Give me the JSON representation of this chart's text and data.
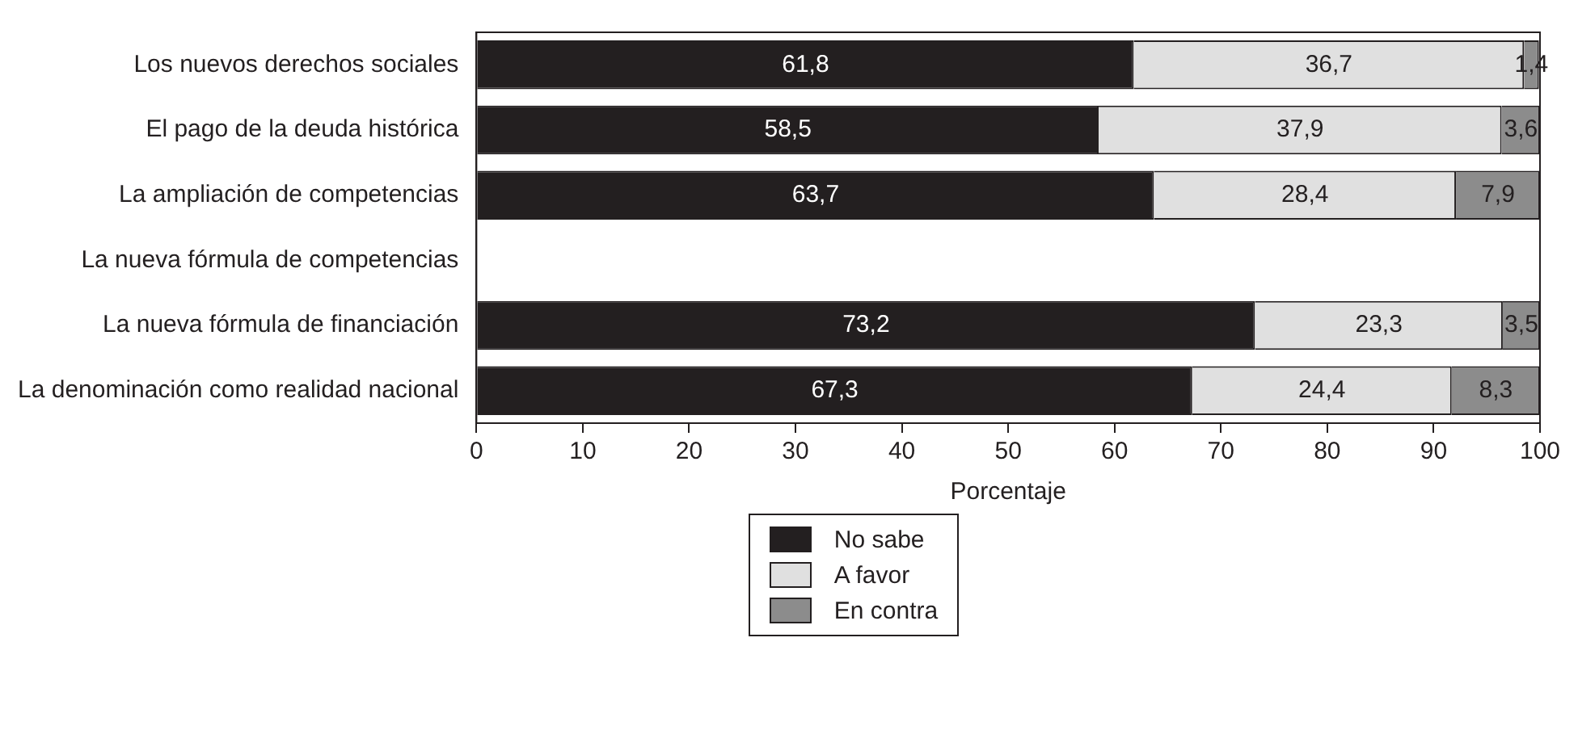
{
  "chart_data": {
    "type": "bar",
    "orientation": "horizontal",
    "stacked": true,
    "categories": [
      "Los nuevos derechos sociales",
      "El pago de la deuda histórica",
      "La ampliación de competencias",
      "La nueva fórmula de competencias",
      "La nueva fórmula de financiación",
      "La denominación como realidad nacional"
    ],
    "series": [
      {
        "name": "No sabe",
        "color": "#231f20",
        "values": [
          61.8,
          58.5,
          63.7,
          null,
          73.2,
          67.3
        ],
        "value_labels": [
          "61,8",
          "58,5",
          "63,7",
          null,
          "73,2",
          "67,3"
        ]
      },
      {
        "name": "A favor",
        "color": "#e0e0e0",
        "values": [
          36.7,
          37.9,
          28.4,
          null,
          23.3,
          24.4
        ],
        "value_labels": [
          "36,7",
          "37,9",
          "28,4",
          null,
          "23,3",
          "24,4"
        ]
      },
      {
        "name": "En contra",
        "color": "#8c8c8c",
        "values": [
          1.4,
          3.6,
          7.9,
          null,
          3.5,
          8.3
        ],
        "value_labels": [
          "1,4",
          "3,6",
          "7,9",
          null,
          "3,5",
          "8,3"
        ]
      }
    ],
    "xlabel": "Porcentaje",
    "xlim": [
      0,
      100
    ],
    "xticks": [
      0,
      10,
      20,
      30,
      40,
      50,
      60,
      70,
      80,
      90,
      100
    ],
    "grid": false,
    "legend": "bottom"
  }
}
